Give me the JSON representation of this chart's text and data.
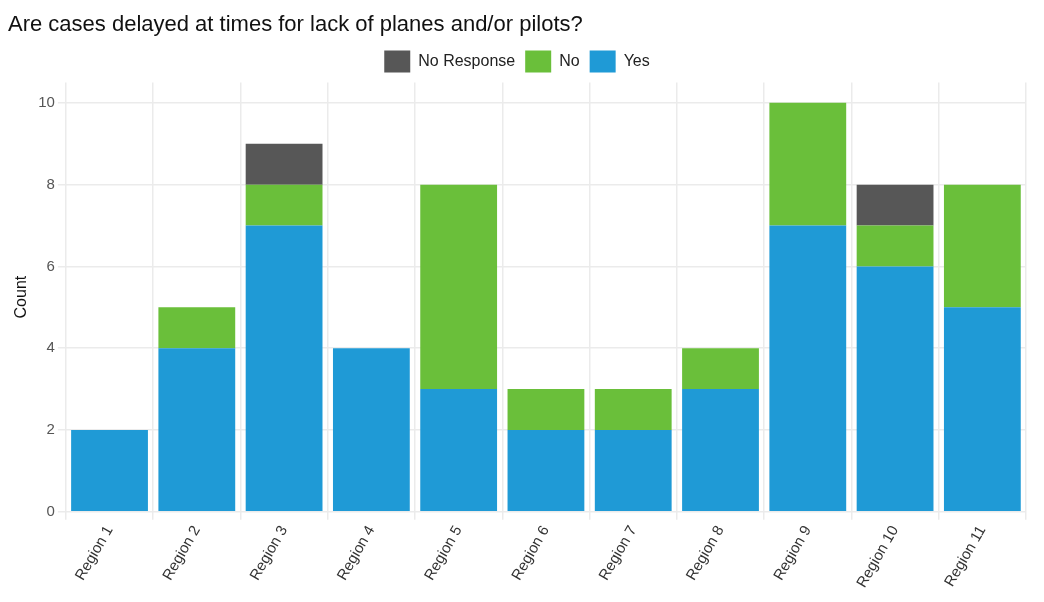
{
  "chart_data": {
    "type": "bar",
    "title": "Are cases delayed at times for lack of planes and/or pilots?",
    "ylabel": "Count",
    "categories": [
      "Region 1",
      "Region 2",
      "Region 3",
      "Region 4",
      "Region 5",
      "Region 6",
      "Region 7",
      "Region 8",
      "Region 9",
      "Region 10",
      "Region 11"
    ],
    "series": [
      {
        "name": "Yes",
        "color": "#1f9ad6",
        "values": [
          2,
          4,
          7,
          4,
          3,
          2,
          2,
          3,
          7,
          6,
          5
        ]
      },
      {
        "name": "No",
        "color": "#6abf3a",
        "values": [
          0,
          1,
          1,
          0,
          5,
          1,
          1,
          1,
          3,
          1,
          3
        ]
      },
      {
        "name": "No Response",
        "color": "#575757",
        "values": [
          0,
          0,
          1,
          0,
          0,
          0,
          0,
          0,
          0,
          1,
          0
        ]
      }
    ],
    "stacked": true,
    "ylim": [
      0,
      10.5
    ],
    "yticks": [
      0,
      2,
      4,
      6,
      8,
      10
    ],
    "grid": true,
    "legend": "top"
  }
}
